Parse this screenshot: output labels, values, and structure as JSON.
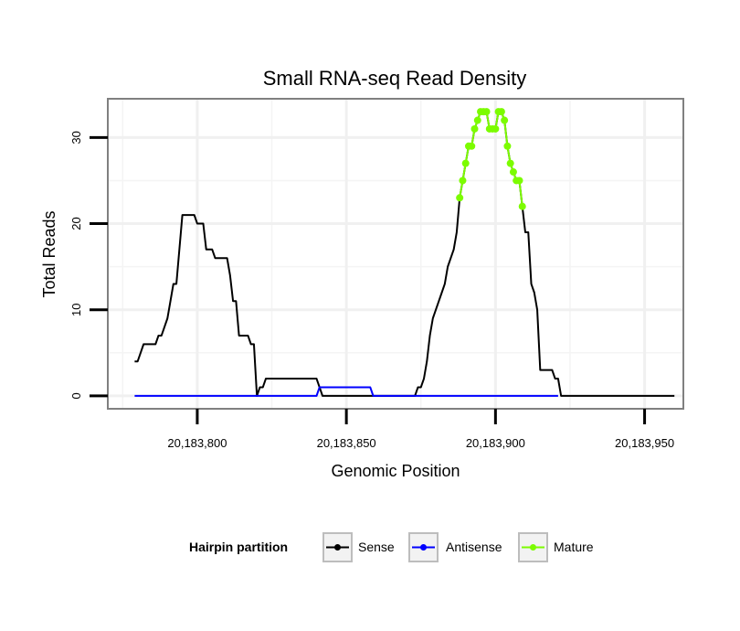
{
  "chart_data": {
    "type": "line",
    "title": "Small RNA-seq Read Density",
    "xlabel": "Genomic Position",
    "ylabel": "Total Reads",
    "xlim": [
      20183770,
      20183963
    ],
    "ylim": [
      -1.5,
      34.5
    ],
    "x_ticks": [
      20183800,
      20183850,
      20183900,
      20183950
    ],
    "x_tick_labels": [
      "20,183,800",
      "20,183,850",
      "20,183,900",
      "20,183,950"
    ],
    "y_ticks": [
      0,
      10,
      20,
      30
    ],
    "y_tick_labels": [
      "0",
      "10",
      "20",
      "30"
    ],
    "grid": true,
    "legend": {
      "title": "Hairpin partition",
      "position": "bottom",
      "entries": [
        {
          "label": "Sense",
          "color": "#000000"
        },
        {
          "label": "Antisense",
          "color": "#0000ff"
        },
        {
          "label": "Mature",
          "color": "#7cfc00"
        }
      ]
    },
    "series": [
      {
        "name": "Sense",
        "color": "#000000",
        "points": [
          [
            20183779,
            4
          ],
          [
            20183780,
            4
          ],
          [
            20183781,
            5
          ],
          [
            20183782,
            6
          ],
          [
            20183783,
            6
          ],
          [
            20183784,
            6
          ],
          [
            20183785,
            6
          ],
          [
            20183786,
            6
          ],
          [
            20183787,
            7
          ],
          [
            20183788,
            7
          ],
          [
            20183789,
            8
          ],
          [
            20183790,
            9
          ],
          [
            20183791,
            11
          ],
          [
            20183792,
            13
          ],
          [
            20183793,
            13
          ],
          [
            20183794,
            17
          ],
          [
            20183795,
            21
          ],
          [
            20183796,
            21
          ],
          [
            20183797,
            21
          ],
          [
            20183798,
            21
          ],
          [
            20183799,
            21
          ],
          [
            20183800,
            20
          ],
          [
            20183801,
            20
          ],
          [
            20183802,
            20
          ],
          [
            20183803,
            17
          ],
          [
            20183804,
            17
          ],
          [
            20183805,
            17
          ],
          [
            20183806,
            16
          ],
          [
            20183807,
            16
          ],
          [
            20183808,
            16
          ],
          [
            20183809,
            16
          ],
          [
            20183810,
            16
          ],
          [
            20183811,
            14
          ],
          [
            20183812,
            11
          ],
          [
            20183813,
            11
          ],
          [
            20183814,
            7
          ],
          [
            20183815,
            7
          ],
          [
            20183816,
            7
          ],
          [
            20183817,
            7
          ],
          [
            20183818,
            6
          ],
          [
            20183819,
            6
          ],
          [
            20183820,
            0
          ],
          [
            20183821,
            1
          ],
          [
            20183822,
            1
          ],
          [
            20183823,
            2
          ],
          [
            20183824,
            2
          ],
          [
            20183825,
            2
          ],
          [
            20183826,
            2
          ],
          [
            20183827,
            2
          ],
          [
            20183828,
            2
          ],
          [
            20183829,
            2
          ],
          [
            20183830,
            2
          ],
          [
            20183831,
            2
          ],
          [
            20183832,
            2
          ],
          [
            20183833,
            2
          ],
          [
            20183834,
            2
          ],
          [
            20183835,
            2
          ],
          [
            20183836,
            2
          ],
          [
            20183837,
            2
          ],
          [
            20183838,
            2
          ],
          [
            20183839,
            2
          ],
          [
            20183840,
            2
          ],
          [
            20183841,
            1
          ],
          [
            20183842,
            0
          ],
          [
            20183843,
            0
          ],
          [
            20183844,
            0
          ],
          [
            20183845,
            0
          ],
          [
            20183846,
            0
          ],
          [
            20183847,
            0
          ],
          [
            20183848,
            0
          ],
          [
            20183849,
            0
          ],
          [
            20183850,
            0
          ],
          [
            20183851,
            0
          ],
          [
            20183852,
            0
          ],
          [
            20183853,
            0
          ],
          [
            20183854,
            0
          ],
          [
            20183855,
            0
          ],
          [
            20183856,
            0
          ],
          [
            20183857,
            0
          ],
          [
            20183858,
            0
          ],
          [
            20183859,
            0
          ],
          [
            20183860,
            0
          ],
          [
            20183861,
            0
          ],
          [
            20183862,
            0
          ],
          [
            20183863,
            0
          ],
          [
            20183864,
            0
          ],
          [
            20183865,
            0
          ],
          [
            20183866,
            0
          ],
          [
            20183867,
            0
          ],
          [
            20183868,
            0
          ],
          [
            20183869,
            0
          ],
          [
            20183870,
            0
          ],
          [
            20183871,
            0
          ],
          [
            20183872,
            0
          ],
          [
            20183873,
            0
          ],
          [
            20183874,
            1
          ],
          [
            20183875,
            1
          ],
          [
            20183876,
            2
          ],
          [
            20183877,
            4
          ],
          [
            20183878,
            7
          ],
          [
            20183879,
            9
          ],
          [
            20183880,
            10
          ],
          [
            20183881,
            11
          ],
          [
            20183882,
            12
          ],
          [
            20183883,
            13
          ],
          [
            20183884,
            15
          ],
          [
            20183885,
            16
          ],
          [
            20183886,
            17
          ],
          [
            20183887,
            19
          ],
          [
            20183888,
            23
          ],
          [
            20183889,
            25
          ],
          [
            20183890,
            27
          ],
          [
            20183891,
            29
          ],
          [
            20183892,
            29
          ],
          [
            20183893,
            31
          ],
          [
            20183894,
            32
          ],
          [
            20183895,
            33
          ],
          [
            20183896,
            33
          ],
          [
            20183897,
            33
          ],
          [
            20183898,
            31
          ],
          [
            20183899,
            31
          ],
          [
            20183900,
            31
          ],
          [
            20183901,
            33
          ],
          [
            20183902,
            33
          ],
          [
            20183903,
            32
          ],
          [
            20183904,
            29
          ],
          [
            20183905,
            27
          ],
          [
            20183906,
            26
          ],
          [
            20183907,
            25
          ],
          [
            20183908,
            25
          ],
          [
            20183909,
            22
          ],
          [
            20183910,
            19
          ],
          [
            20183911,
            19
          ],
          [
            20183912,
            13
          ],
          [
            20183913,
            12
          ],
          [
            20183914,
            10
          ],
          [
            20183915,
            3
          ],
          [
            20183916,
            3
          ],
          [
            20183917,
            3
          ],
          [
            20183918,
            3
          ],
          [
            20183919,
            3
          ],
          [
            20183920,
            2
          ],
          [
            20183921,
            2
          ],
          [
            20183922,
            0
          ],
          [
            20183930,
            0
          ],
          [
            20183940,
            0
          ],
          [
            20183950,
            0
          ],
          [
            20183960,
            0
          ]
        ]
      },
      {
        "name": "Antisense",
        "color": "#0000ff",
        "points": [
          [
            20183779,
            0
          ],
          [
            20183790,
            0
          ],
          [
            20183800,
            0
          ],
          [
            20183810,
            0
          ],
          [
            20183820,
            0
          ],
          [
            20183830,
            0
          ],
          [
            20183838,
            0
          ],
          [
            20183839,
            0
          ],
          [
            20183840,
            0
          ],
          [
            20183841,
            1
          ],
          [
            20183842,
            1
          ],
          [
            20183845,
            1
          ],
          [
            20183850,
            1
          ],
          [
            20183855,
            1
          ],
          [
            20183857,
            1
          ],
          [
            20183858,
            1
          ],
          [
            20183859,
            0
          ],
          [
            20183860,
            0
          ],
          [
            20183870,
            0
          ],
          [
            20183880,
            0
          ],
          [
            20183890,
            0
          ],
          [
            20183900,
            0
          ],
          [
            20183910,
            0
          ],
          [
            20183920,
            0
          ],
          [
            20183921,
            0
          ]
        ]
      },
      {
        "name": "Mature",
        "color": "#7cfc00",
        "points": [
          [
            20183888,
            23
          ],
          [
            20183889,
            25
          ],
          [
            20183890,
            27
          ],
          [
            20183891,
            29
          ],
          [
            20183892,
            29
          ],
          [
            20183893,
            31
          ],
          [
            20183894,
            32
          ],
          [
            20183895,
            33
          ],
          [
            20183896,
            33
          ],
          [
            20183897,
            33
          ],
          [
            20183898,
            31
          ],
          [
            20183899,
            31
          ],
          [
            20183900,
            31
          ],
          [
            20183901,
            33
          ],
          [
            20183902,
            33
          ],
          [
            20183903,
            32
          ],
          [
            20183904,
            29
          ],
          [
            20183905,
            27
          ],
          [
            20183906,
            26
          ],
          [
            20183907,
            25
          ],
          [
            20183908,
            25
          ],
          [
            20183909,
            22
          ]
        ]
      }
    ]
  }
}
